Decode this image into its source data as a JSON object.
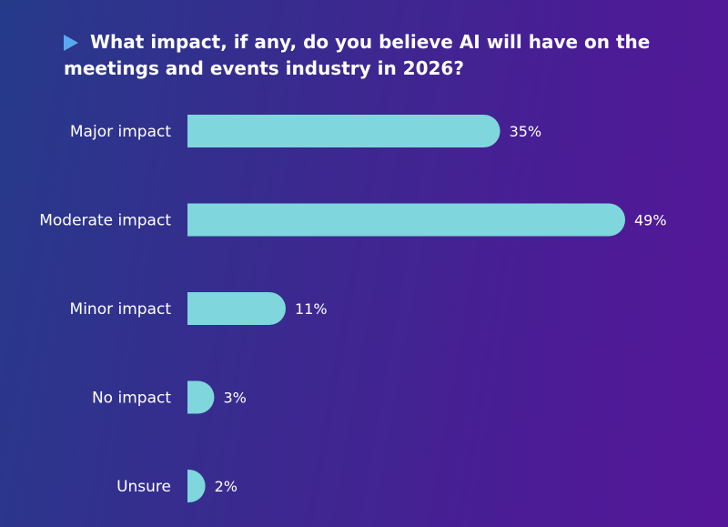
{
  "chart_data": {
    "type": "bar",
    "orientation": "horizontal",
    "title": "What impact, if any, do you believe AI will have on the meetings and events industry in 2026?",
    "categories": [
      "Major impact",
      "Moderate impact",
      "Minor impact",
      "No impact",
      "Unsure"
    ],
    "values": [
      35,
      49,
      11,
      3,
      2
    ],
    "value_labels": [
      "35%",
      "49%",
      "11%",
      "3%",
      "2%"
    ],
    "unit": "%",
    "xlim": [
      0,
      49
    ],
    "grid": false,
    "legend": "none",
    "colors": {
      "bar": "#7fd6dc",
      "title_marker": "#5aa8f0",
      "text": "#ffffff",
      "background_start": "#263a8a",
      "background_end": "#56169a"
    }
  }
}
